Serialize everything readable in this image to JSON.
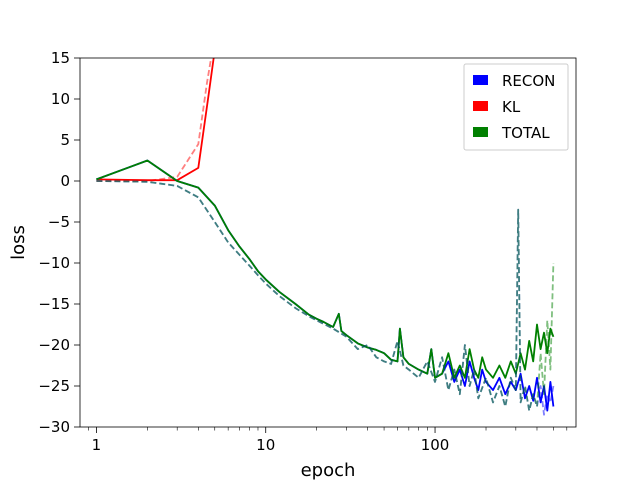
{
  "chart_data": {
    "type": "line",
    "title": "",
    "xlabel": "epoch",
    "ylabel": "loss",
    "xscale": "log",
    "xlim": [
      0.8,
      680
    ],
    "ylim": [
      -30,
      15
    ],
    "xticks": [
      {
        "value": 1,
        "label": "1"
      },
      {
        "value": 10,
        "label": "10"
      },
      {
        "value": 100,
        "label": "100"
      }
    ],
    "yticks": [
      {
        "value": 15,
        "label": "15"
      },
      {
        "value": 10,
        "label": "10"
      },
      {
        "value": 5,
        "label": "5"
      },
      {
        "value": 0,
        "label": "0"
      },
      {
        "value": -5,
        "label": "−5"
      },
      {
        "value": -10,
        "label": "−10"
      },
      {
        "value": -15,
        "label": "−15"
      },
      {
        "value": -20,
        "label": "−20"
      },
      {
        "value": -25,
        "label": "−25"
      },
      {
        "value": -30,
        "label": "−30"
      }
    ],
    "grid": false,
    "legend_position": "top-right",
    "legend": [
      {
        "label": "RECON",
        "color": "#0000ff"
      },
      {
        "label": "KL",
        "color": "#ff0000"
      },
      {
        "label": "TOTAL",
        "color": "#008000"
      }
    ],
    "series": [
      {
        "name": "KL",
        "color": "#ff0000",
        "style": "solid",
        "x": [
          1,
          2,
          3,
          4,
          4.6,
          5,
          5.3
        ],
        "y": [
          0.2,
          0.1,
          0.1,
          1.6,
          10.5,
          16,
          20
        ]
      },
      {
        "name": "KL",
        "color": "#ff0000",
        "style": "dashed",
        "x": [
          1,
          2,
          3,
          4,
          4.5,
          4.8,
          5.2
        ],
        "y": [
          0.0,
          0.0,
          0.5,
          4.5,
          12.0,
          15.5,
          20
        ]
      },
      {
        "name": "RECON",
        "color": "#0000ff",
        "style": "solid",
        "x": [
          1,
          2,
          3,
          4,
          5,
          6,
          7,
          8,
          9,
          10,
          12,
          15,
          18,
          20,
          22,
          25,
          27,
          28,
          30,
          35,
          40,
          45,
          50,
          55,
          60,
          62,
          65,
          70,
          80,
          90,
          95,
          100,
          110,
          120,
          130,
          140,
          150,
          160,
          170,
          180,
          190,
          200,
          220,
          240,
          260,
          280,
          300,
          320,
          340,
          360,
          380,
          400,
          420,
          440,
          460,
          480,
          500
        ],
        "y": [
          0.2,
          2.5,
          0.0,
          -0.8,
          -3.0,
          -6.0,
          -8.0,
          -9.5,
          -11.0,
          -12.0,
          -13.5,
          -15.0,
          -16.3,
          -16.8,
          -17.2,
          -17.8,
          -16.2,
          -18.3,
          -18.8,
          -19.8,
          -20.3,
          -20.6,
          -21.0,
          -21.8,
          -22.0,
          -18.0,
          -21.5,
          -22.3,
          -23.0,
          -23.5,
          -20.5,
          -24.0,
          -23.5,
          -22.0,
          -24.5,
          -23.0,
          -25.0,
          -22.0,
          -24.0,
          -25.5,
          -23.0,
          -24.5,
          -25.5,
          -24.0,
          -26.0,
          -24.5,
          -25.5,
          -23.5,
          -26.5,
          -25.0,
          -26.8,
          -24.0,
          -27.0,
          -25.0,
          -28.0,
          -24.5,
          -27.5
        ]
      },
      {
        "name": "TOTAL",
        "color": "#008000",
        "style": "solid",
        "x": [
          1,
          2,
          3,
          4,
          5,
          6,
          7,
          8,
          9,
          10,
          12,
          15,
          18,
          20,
          22,
          25,
          27,
          28,
          30,
          35,
          40,
          45,
          50,
          55,
          60,
          62,
          65,
          70,
          80,
          90,
          95,
          100,
          110,
          120,
          130,
          140,
          150,
          160,
          170,
          180,
          190,
          200,
          220,
          240,
          260,
          280,
          300,
          320,
          340,
          360,
          380,
          400,
          420,
          440,
          460,
          480,
          500
        ],
        "y": [
          0.2,
          2.5,
          0.0,
          -0.8,
          -3.0,
          -6.0,
          -8.0,
          -9.5,
          -11.0,
          -12.0,
          -13.5,
          -15.0,
          -16.3,
          -16.8,
          -17.2,
          -17.8,
          -16.2,
          -18.3,
          -18.8,
          -19.8,
          -20.3,
          -20.6,
          -21.0,
          -21.8,
          -22.0,
          -18.0,
          -21.5,
          -22.3,
          -23.0,
          -23.5,
          -20.5,
          -24.0,
          -23.5,
          -21.0,
          -24.0,
          -22.5,
          -24.0,
          -20.5,
          -23.0,
          -24.0,
          -21.5,
          -23.0,
          -24.0,
          -22.5,
          -24.0,
          -22.0,
          -23.5,
          -21.0,
          -23.0,
          -19.5,
          -22.0,
          -17.5,
          -20.5,
          -18.5,
          -21.0,
          -18.0,
          -19.0
        ]
      },
      {
        "name": "RECON",
        "color": "#0000ff",
        "style": "dashed",
        "x": [
          1,
          2,
          3,
          4,
          5,
          6,
          7,
          8,
          9,
          10,
          12,
          15,
          18,
          20,
          25,
          30,
          35,
          40,
          45,
          50,
          55,
          60,
          65,
          70,
          80,
          90,
          100,
          110,
          120,
          130,
          140,
          150,
          160,
          170,
          180,
          200,
          220,
          240,
          260,
          280,
          300,
          310,
          320,
          340,
          360,
          380,
          400,
          420,
          440,
          460,
          480,
          500
        ],
        "y": [
          0.0,
          -0.1,
          -0.6,
          -2.0,
          -5.0,
          -7.5,
          -9.0,
          -10.3,
          -11.5,
          -12.5,
          -14.0,
          -15.5,
          -16.5,
          -17.0,
          -18.0,
          -19.0,
          -20.5,
          -20.0,
          -21.5,
          -22.0,
          -22.3,
          -19.5,
          -22.5,
          -23.0,
          -24.0,
          -22.0,
          -24.5,
          -21.5,
          -25.5,
          -23.0,
          -26.0,
          -20.0,
          -25.0,
          -23.0,
          -26.5,
          -24.0,
          -27.0,
          -25.0,
          -27.5,
          -24.0,
          -25.5,
          -3.5,
          -27.0,
          -25.0,
          -28.0,
          -26.0,
          -27.5,
          -25.0,
          -28.5,
          -26.0,
          -27.0,
          -25.0
        ]
      },
      {
        "name": "TOTAL",
        "color": "#008000",
        "style": "dashed",
        "x": [
          1,
          2,
          3,
          4,
          5,
          6,
          7,
          8,
          9,
          10,
          12,
          15,
          18,
          20,
          25,
          30,
          35,
          40,
          45,
          50,
          55,
          60,
          65,
          70,
          80,
          90,
          100,
          110,
          120,
          130,
          140,
          150,
          160,
          170,
          180,
          200,
          220,
          240,
          260,
          280,
          300,
          310,
          320,
          340,
          360,
          380,
          400,
          420,
          440,
          460,
          480,
          500
        ],
        "y": [
          0.0,
          -0.1,
          -0.6,
          -2.0,
          -5.0,
          -7.5,
          -9.0,
          -10.3,
          -11.5,
          -12.5,
          -14.0,
          -15.5,
          -16.5,
          -17.0,
          -18.0,
          -19.0,
          -20.5,
          -20.0,
          -21.5,
          -22.0,
          -22.3,
          -19.5,
          -22.5,
          -23.0,
          -24.0,
          -22.0,
          -24.5,
          -21.5,
          -25.5,
          -23.0,
          -26.0,
          -20.0,
          -25.0,
          -23.0,
          -26.5,
          -24.0,
          -27.0,
          -25.0,
          -27.5,
          -24.0,
          -25.5,
          -3.5,
          -27.0,
          -25.0,
          -28.0,
          -26.0,
          -27.5,
          -21.0,
          -26.0,
          -17.0,
          -23.0,
          -10.0
        ]
      }
    ]
  }
}
